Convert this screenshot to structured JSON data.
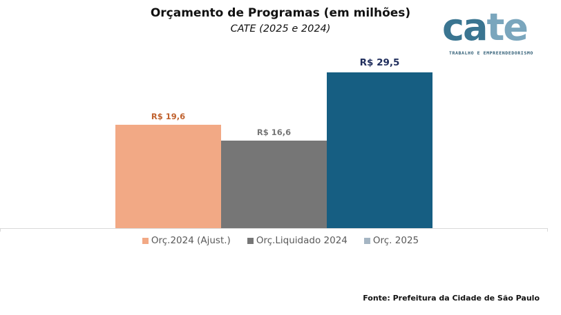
{
  "header": {
    "title": "Orçamento de Programas (em milhões)",
    "subtitle": "CATE (2025 e 2024)"
  },
  "logo": {
    "word_dark": "ca",
    "word_light": "te",
    "tagline": "TRABALHO E EMPREENDEDORISMO"
  },
  "chart_data": {
    "type": "bar",
    "title": "Orçamento de Programas (em milhões)",
    "subtitle": "CATE (2025 e 2024)",
    "categories": [
      "Orç.2024 (Ajust.)",
      "Orç.Liquidado 2024",
      "Orç. 2025"
    ],
    "values": [
      19.6,
      16.6,
      29.5
    ],
    "data_labels": [
      "R$ 19,6",
      "R$ 16,6",
      "R$ 29,5"
    ],
    "colors": [
      "#f2a985",
      "#767676",
      "#165e82"
    ],
    "label_colors": [
      "#c0622f",
      "#767676",
      "#1f2d5c"
    ],
    "xlabel": "",
    "ylabel": "",
    "ylim": [
      0,
      35
    ],
    "grid": false,
    "legend_position": "bottom",
    "unit": "R$ milhões"
  },
  "legend": {
    "items": [
      {
        "label": "Orç.2024 (Ajust.)",
        "color": "#f2a985"
      },
      {
        "label": "Orç.Liquidado 2024",
        "color": "#767676"
      },
      {
        "label": "Orç. 2025",
        "color": "#a5b5c3"
      }
    ]
  },
  "footer": {
    "source": "Fonte: Prefeitura da Cidade de São Paulo"
  }
}
